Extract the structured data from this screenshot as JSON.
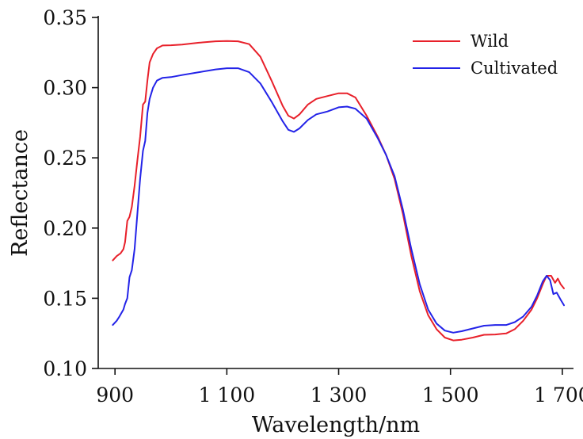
{
  "chart_data": {
    "type": "line",
    "xlabel": "Wavelength/nm",
    "ylabel": "Reflectance",
    "xlim": [
      870,
      1720
    ],
    "ylim": [
      0.1,
      0.35
    ],
    "x_ticks": [
      900,
      1100,
      1300,
      1500,
      1700
    ],
    "x_tick_labels": [
      "900",
      "1 100",
      "1 300",
      "1 500",
      "1 700"
    ],
    "y_ticks": [
      0.1,
      0.15,
      0.2,
      0.25,
      0.3,
      0.35
    ],
    "y_tick_labels": [
      "0.10",
      "0.15",
      "0.20",
      "0.25",
      "0.30",
      "0.35"
    ],
    "grid": false,
    "legend_position": "top-right",
    "series": [
      {
        "name": "Wild",
        "color": "#e8202a",
        "points": [
          [
            896,
            0.177
          ],
          [
            903,
            0.18
          ],
          [
            910,
            0.182
          ],
          [
            915,
            0.185
          ],
          [
            918,
            0.19
          ],
          [
            922,
            0.205
          ],
          [
            926,
            0.208
          ],
          [
            930,
            0.215
          ],
          [
            935,
            0.23
          ],
          [
            940,
            0.248
          ],
          [
            945,
            0.265
          ],
          [
            950,
            0.288
          ],
          [
            954,
            0.29
          ],
          [
            958,
            0.305
          ],
          [
            962,
            0.318
          ],
          [
            968,
            0.324
          ],
          [
            975,
            0.328
          ],
          [
            985,
            0.33
          ],
          [
            1000,
            0.3302
          ],
          [
            1020,
            0.3307
          ],
          [
            1050,
            0.332
          ],
          [
            1080,
            0.333
          ],
          [
            1100,
            0.3332
          ],
          [
            1120,
            0.333
          ],
          [
            1140,
            0.331
          ],
          [
            1160,
            0.322
          ],
          [
            1180,
            0.305
          ],
          [
            1200,
            0.287
          ],
          [
            1210,
            0.28
          ],
          [
            1220,
            0.278
          ],
          [
            1230,
            0.281
          ],
          [
            1245,
            0.288
          ],
          [
            1260,
            0.292
          ],
          [
            1280,
            0.294
          ],
          [
            1300,
            0.296
          ],
          [
            1315,
            0.296
          ],
          [
            1330,
            0.293
          ],
          [
            1350,
            0.28
          ],
          [
            1370,
            0.265
          ],
          [
            1385,
            0.252
          ],
          [
            1400,
            0.235
          ],
          [
            1415,
            0.21
          ],
          [
            1430,
            0.18
          ],
          [
            1445,
            0.155
          ],
          [
            1460,
            0.138
          ],
          [
            1475,
            0.128
          ],
          [
            1490,
            0.122
          ],
          [
            1505,
            0.12
          ],
          [
            1520,
            0.1205
          ],
          [
            1540,
            0.122
          ],
          [
            1560,
            0.124
          ],
          [
            1580,
            0.1242
          ],
          [
            1600,
            0.125
          ],
          [
            1615,
            0.128
          ],
          [
            1630,
            0.134
          ],
          [
            1645,
            0.142
          ],
          [
            1655,
            0.15
          ],
          [
            1665,
            0.16
          ],
          [
            1672,
            0.166
          ],
          [
            1680,
            0.166
          ],
          [
            1687,
            0.161
          ],
          [
            1692,
            0.164
          ],
          [
            1697,
            0.16
          ],
          [
            1703,
            0.157
          ]
        ]
      },
      {
        "name": "Cultivated",
        "color": "#2323e8",
        "points": [
          [
            896,
            0.131
          ],
          [
            903,
            0.134
          ],
          [
            908,
            0.137
          ],
          [
            915,
            0.142
          ],
          [
            918,
            0.146
          ],
          [
            922,
            0.15
          ],
          [
            926,
            0.165
          ],
          [
            930,
            0.17
          ],
          [
            935,
            0.185
          ],
          [
            940,
            0.21
          ],
          [
            945,
            0.235
          ],
          [
            950,
            0.255
          ],
          [
            954,
            0.262
          ],
          [
            958,
            0.282
          ],
          [
            962,
            0.292
          ],
          [
            968,
            0.3
          ],
          [
            975,
            0.305
          ],
          [
            985,
            0.307
          ],
          [
            1000,
            0.3075
          ],
          [
            1020,
            0.309
          ],
          [
            1050,
            0.311
          ],
          [
            1080,
            0.313
          ],
          [
            1100,
            0.3138
          ],
          [
            1120,
            0.3138
          ],
          [
            1140,
            0.311
          ],
          [
            1160,
            0.303
          ],
          [
            1180,
            0.29
          ],
          [
            1200,
            0.276
          ],
          [
            1210,
            0.27
          ],
          [
            1220,
            0.2685
          ],
          [
            1230,
            0.271
          ],
          [
            1245,
            0.277
          ],
          [
            1260,
            0.281
          ],
          [
            1280,
            0.283
          ],
          [
            1300,
            0.286
          ],
          [
            1315,
            0.2865
          ],
          [
            1330,
            0.285
          ],
          [
            1350,
            0.278
          ],
          [
            1370,
            0.264
          ],
          [
            1385,
            0.252
          ],
          [
            1400,
            0.237
          ],
          [
            1415,
            0.213
          ],
          [
            1430,
            0.185
          ],
          [
            1445,
            0.16
          ],
          [
            1460,
            0.142
          ],
          [
            1475,
            0.132
          ],
          [
            1490,
            0.127
          ],
          [
            1505,
            0.1255
          ],
          [
            1520,
            0.1265
          ],
          [
            1540,
            0.1285
          ],
          [
            1560,
            0.1305
          ],
          [
            1580,
            0.131
          ],
          [
            1600,
            0.131
          ],
          [
            1615,
            0.133
          ],
          [
            1630,
            0.137
          ],
          [
            1645,
            0.144
          ],
          [
            1655,
            0.152
          ],
          [
            1665,
            0.162
          ],
          [
            1672,
            0.166
          ],
          [
            1678,
            0.163
          ],
          [
            1684,
            0.153
          ],
          [
            1690,
            0.154
          ],
          [
            1697,
            0.149
          ],
          [
            1703,
            0.145
          ]
        ]
      }
    ]
  }
}
